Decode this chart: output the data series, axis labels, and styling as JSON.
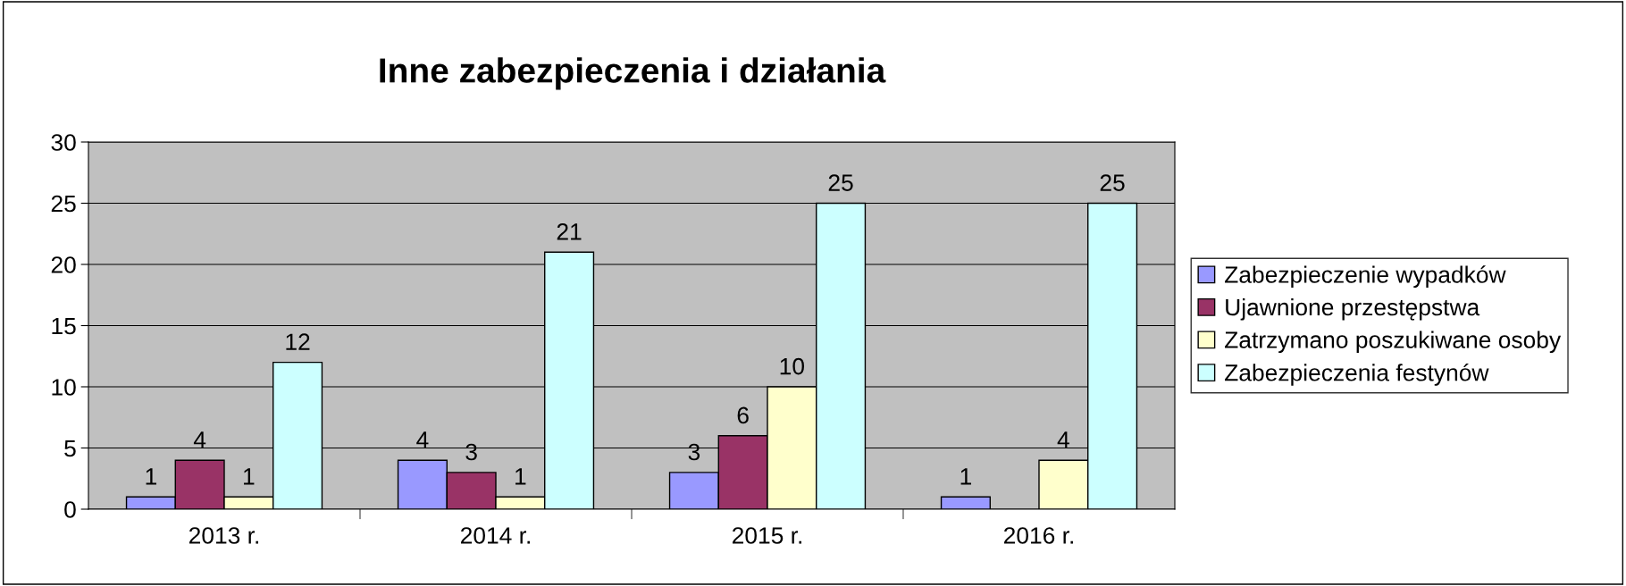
{
  "chart_data": {
    "type": "bar",
    "title": "Inne zabezpieczenia i działania",
    "categories": [
      "2013 r.",
      "2014 r.",
      "2015 r.",
      "2016 r."
    ],
    "series": [
      {
        "name": "Zabezpieczenie wypadków",
        "color": "#9999ff",
        "values": [
          1,
          4,
          3,
          1
        ]
      },
      {
        "name": "Ujawnione przestępstwa",
        "color": "#993366",
        "values": [
          4,
          3,
          6,
          null
        ]
      },
      {
        "name": "Zatrzymano poszukiwane osoby",
        "color": "#ffffcc",
        "values": [
          1,
          1,
          10,
          4
        ]
      },
      {
        "name": "Zabezpieczenia festynów",
        "color": "#ccffff",
        "values": [
          12,
          21,
          25,
          25
        ]
      }
    ],
    "ylim": [
      0,
      30
    ],
    "yticks": [
      0,
      5,
      10,
      15,
      20,
      25,
      30
    ],
    "grid": "y",
    "legend": "right",
    "data_labels": true
  }
}
